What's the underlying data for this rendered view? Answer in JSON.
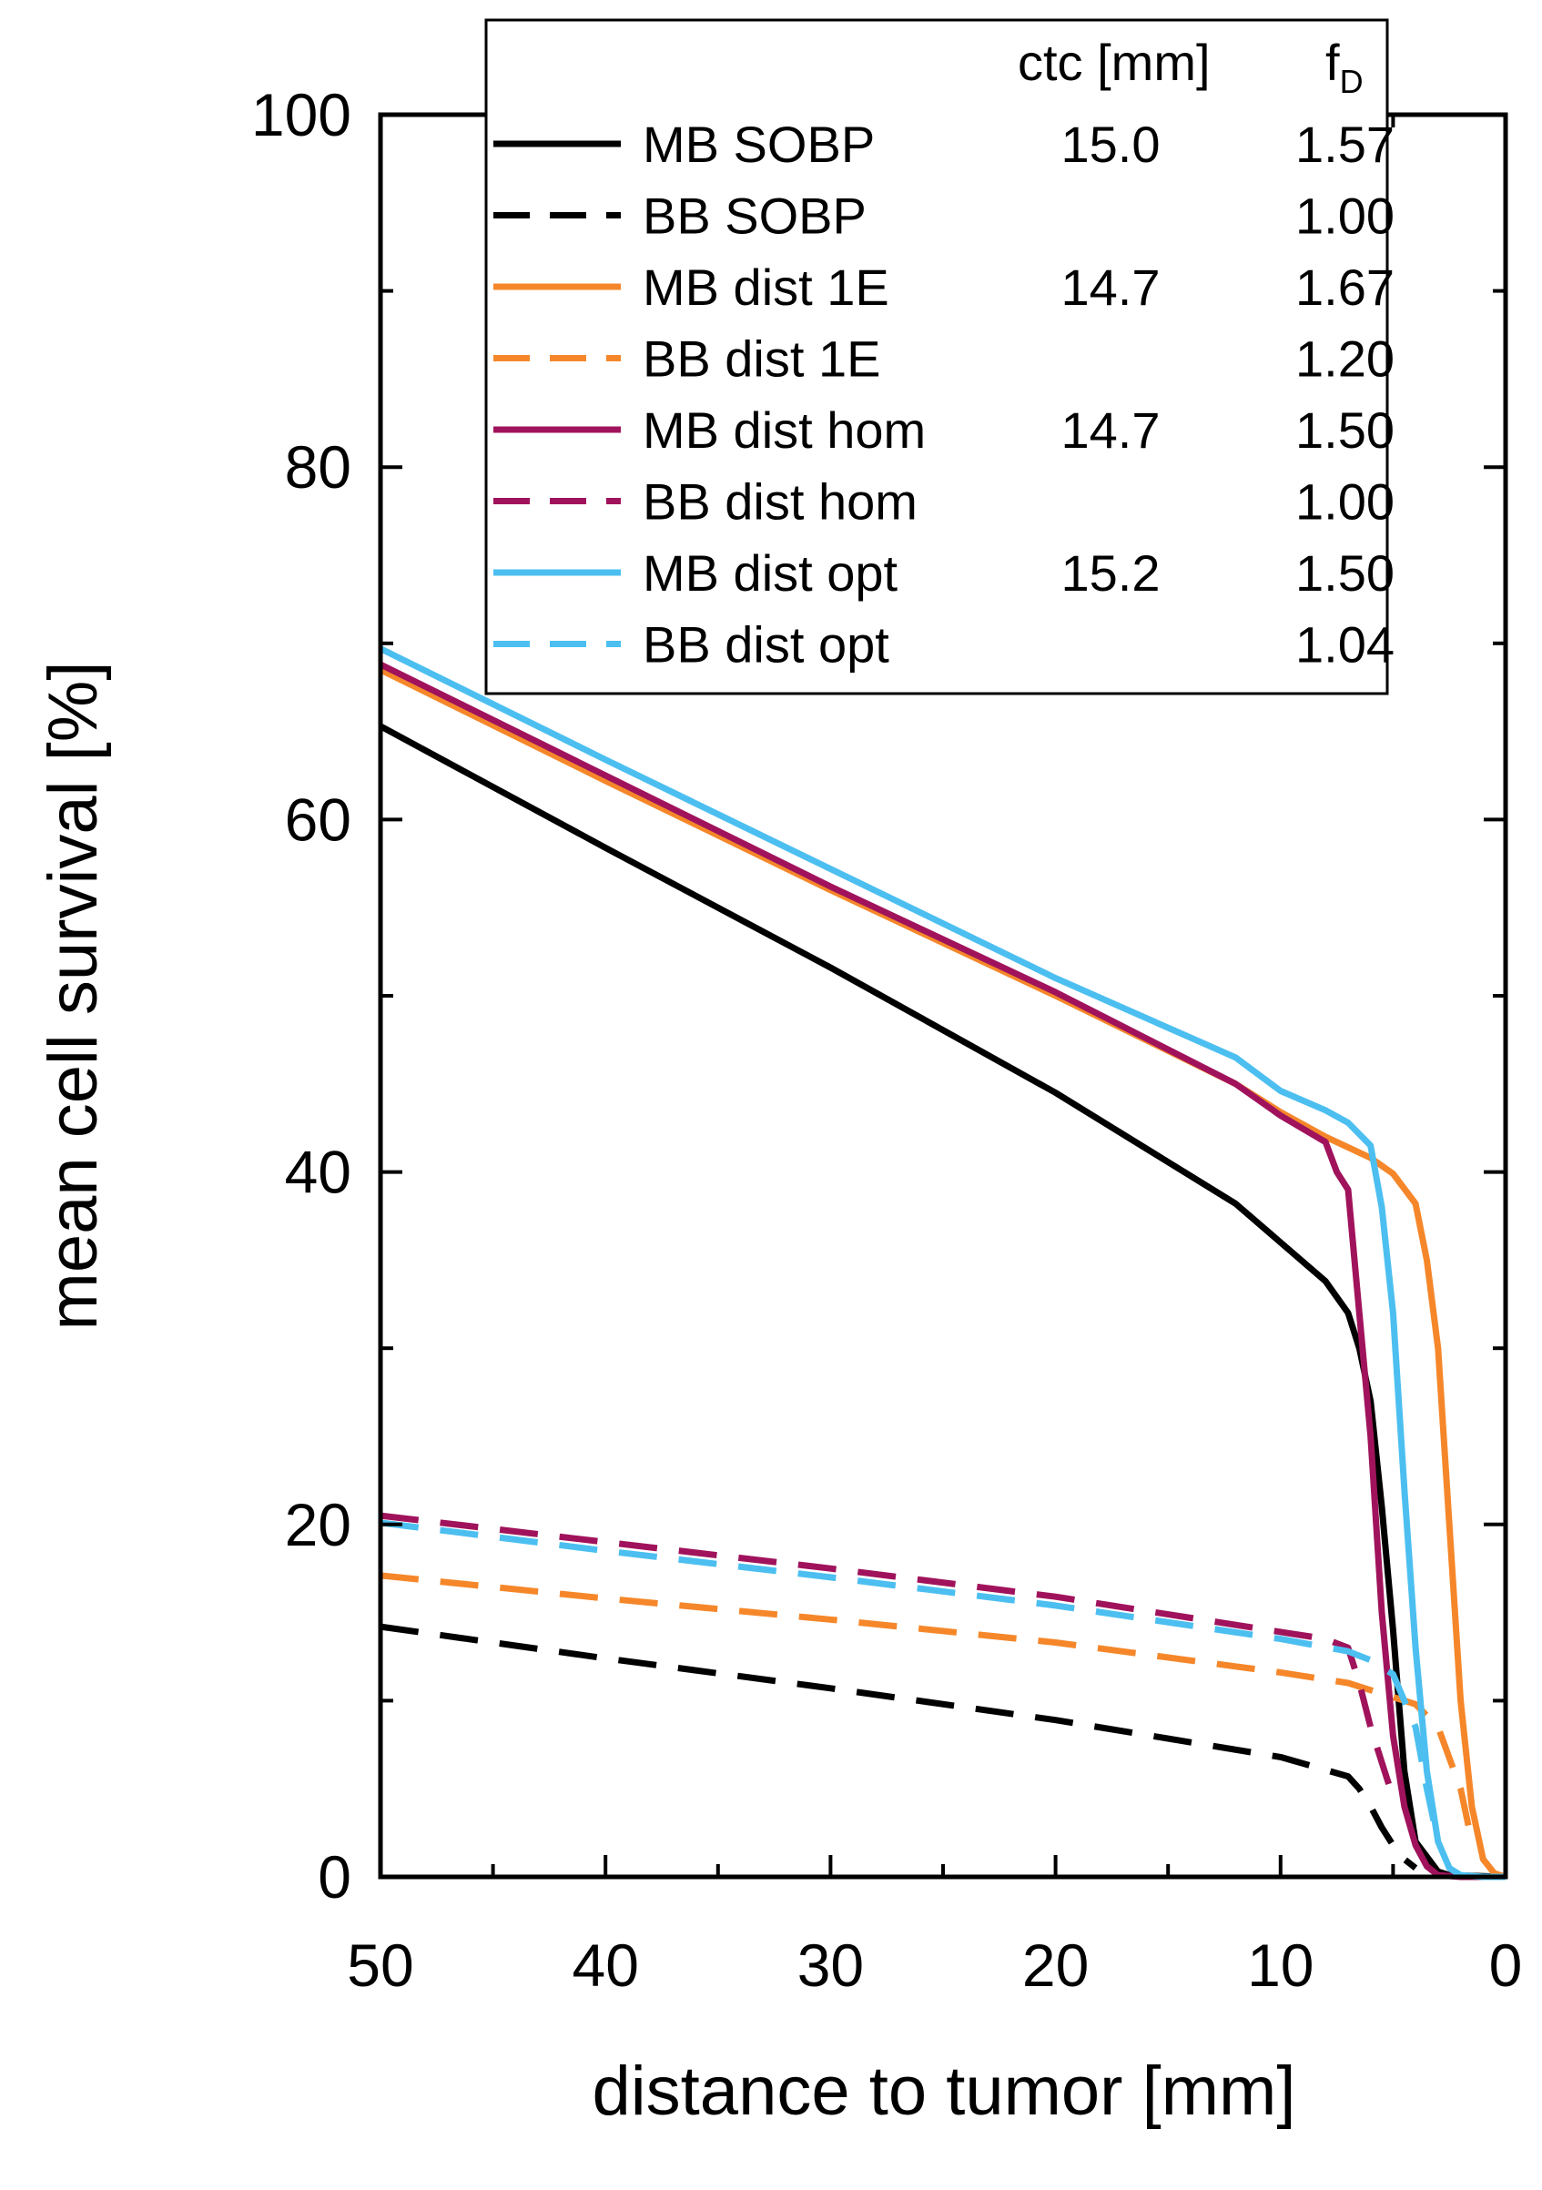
{
  "chart_data": {
    "type": "line",
    "xlabel": "distance to tumor [mm]",
    "ylabel": "mean cell survival [%]",
    "xlim": [
      50,
      0
    ],
    "ylim": [
      0,
      100
    ],
    "x_major_ticks": [
      50,
      40,
      30,
      20,
      10,
      0
    ],
    "x_minor_ticks": [
      45,
      35,
      25,
      15,
      5
    ],
    "y_major_ticks": [
      0,
      20,
      40,
      60,
      80,
      100
    ],
    "y_minor_ticks": [
      10,
      30,
      50,
      70,
      90
    ],
    "x_tick_labels": [
      "50",
      "40",
      "30",
      "20",
      "10",
      "0"
    ],
    "y_tick_labels": [
      "0",
      "20",
      "40",
      "60",
      "80",
      "100"
    ],
    "legend": {
      "position": "top-right",
      "header_ctc": "ctc [mm]",
      "header_fd_main": "f",
      "header_fd_sub": "D",
      "entries": [
        {
          "label": "MB SOBP",
          "ctc": "15.0",
          "fD": "1.57"
        },
        {
          "label": "BB SOBP",
          "ctc": "",
          "fD": "1.00"
        },
        {
          "label": "MB dist 1E",
          "ctc": "14.7",
          "fD": "1.67"
        },
        {
          "label": "BB dist 1E",
          "ctc": "",
          "fD": "1.20"
        },
        {
          "label": "MB dist hom",
          "ctc": "14.7",
          "fD": "1.50"
        },
        {
          "label": "BB dist hom",
          "ctc": "",
          "fD": "1.00"
        },
        {
          "label": "MB dist opt",
          "ctc": "15.2",
          "fD": "1.50"
        },
        {
          "label": "BB dist opt",
          "ctc": "",
          "fD": "1.04"
        }
      ]
    },
    "series": [
      {
        "name": "MB SOBP",
        "color": "#000000",
        "dash": "solid",
        "x": [
          50,
          40,
          30,
          20,
          12,
          10,
          8,
          7,
          6.5,
          6,
          5.5,
          5,
          4.5,
          4,
          3,
          2.5,
          0
        ],
        "y": [
          65.3,
          58.4,
          51.6,
          44.5,
          38.2,
          36.0,
          33.8,
          32.0,
          30.0,
          27.0,
          21.0,
          14.0,
          6.0,
          2.0,
          0.3,
          0.1,
          0
        ]
      },
      {
        "name": "BB SOBP",
        "color": "#000000",
        "dash": "dashed",
        "x": [
          50,
          40,
          30,
          20,
          10,
          7,
          6.5,
          6,
          5.5,
          5,
          4.5,
          4
        ],
        "y": [
          14.2,
          12.4,
          10.7,
          8.9,
          6.8,
          5.7,
          5.0,
          4.0,
          2.8,
          1.8,
          1.0,
          0.5
        ]
      },
      {
        "name": "MB dist 1E",
        "color": "#f5872a",
        "dash": "solid",
        "x": [
          50,
          40,
          30,
          20,
          12,
          10,
          8,
          6,
          5,
          4,
          3.5,
          3,
          2.5,
          2,
          1.5,
          1,
          0.5,
          0
        ],
        "y": [
          68.5,
          62.2,
          56.0,
          50.0,
          45.0,
          43.4,
          42.0,
          40.8,
          39.9,
          38.2,
          35.0,
          30.0,
          20.0,
          10.0,
          4.0,
          1.0,
          0.2,
          0
        ]
      },
      {
        "name": "BB dist 1E",
        "color": "#f5872a",
        "dash": "dashed",
        "x": [
          50,
          40,
          30,
          20,
          10,
          7,
          6,
          5,
          4,
          3,
          2,
          1.5
        ],
        "y": [
          17.1,
          15.8,
          14.6,
          13.3,
          11.6,
          11.0,
          10.6,
          10.2,
          9.8,
          8.5,
          5.0,
          2.0
        ]
      },
      {
        "name": "MB dist hom",
        "color": "#a0135c",
        "dash": "solid",
        "x": [
          50,
          40,
          30,
          20,
          12,
          10,
          8,
          7.5,
          7,
          6.5,
          6,
          5.5,
          5,
          4.5,
          4,
          3.5,
          3,
          2,
          0
        ],
        "y": [
          68.8,
          62.5,
          56.2,
          50.2,
          45.0,
          43.2,
          41.7,
          40.0,
          39.0,
          32.0,
          25.0,
          15.0,
          8.0,
          4.0,
          1.8,
          0.6,
          0.1,
          0,
          0
        ]
      },
      {
        "name": "BB dist hom",
        "color": "#a0135c",
        "dash": "dashed",
        "x": [
          50,
          40,
          30,
          20,
          10,
          8,
          7,
          6.5,
          6,
          5.5,
          5
        ],
        "y": [
          20.5,
          19.0,
          17.5,
          15.9,
          13.9,
          13.5,
          13.0,
          11.0,
          8.5,
          6.5,
          4.5
        ]
      },
      {
        "name": "MB dist opt",
        "color": "#4cbff0",
        "dash": "solid",
        "x": [
          50,
          40,
          30,
          20,
          12,
          10,
          8,
          7,
          6,
          5.5,
          5,
          4.5,
          4,
          3.5,
          3,
          2.5,
          2,
          1,
          0
        ],
        "y": [
          69.7,
          63.4,
          57.2,
          51.0,
          46.5,
          44.6,
          43.5,
          42.8,
          41.5,
          38.0,
          32.0,
          22.0,
          13.0,
          6.0,
          2.0,
          0.5,
          0.1,
          0,
          0
        ]
      },
      {
        "name": "BB dist opt",
        "color": "#4cbff0",
        "dash": "dashed",
        "x": [
          50,
          40,
          30,
          20,
          10,
          7,
          6,
          5,
          4,
          3.5,
          3
        ],
        "y": [
          20.1,
          18.5,
          17.0,
          15.4,
          13.5,
          12.8,
          12.3,
          11.5,
          8.5,
          5.0,
          2.0
        ]
      }
    ]
  }
}
